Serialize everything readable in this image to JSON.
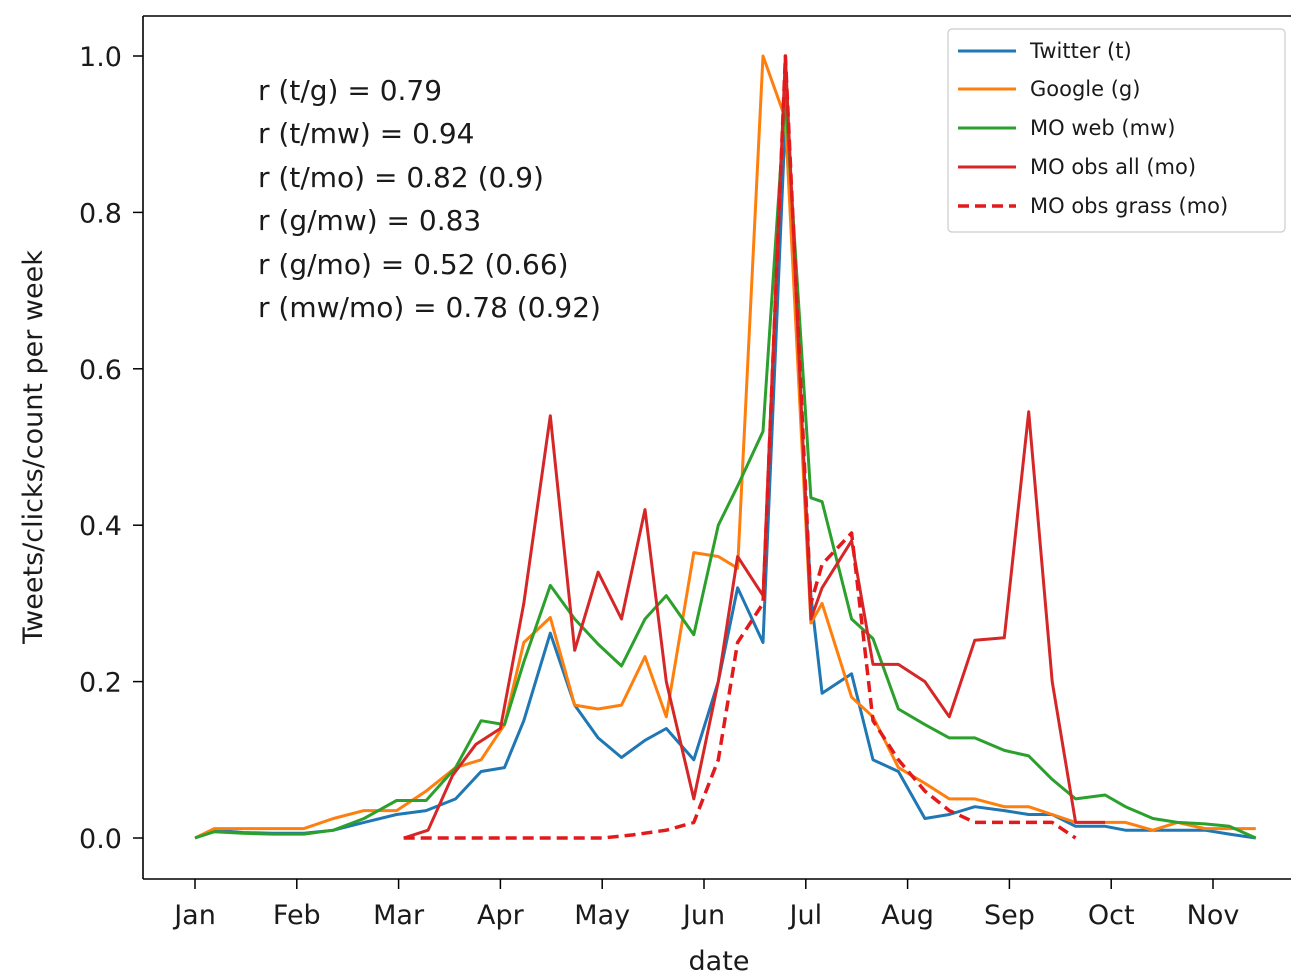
{
  "chart_data": {
    "type": "line",
    "xlabel": "date",
    "ylabel": "Tweets/clicks/count per week",
    "x_tick_labels": [
      "Jan",
      "Feb",
      "Mar",
      "Apr",
      "May",
      "Jun",
      "Jul",
      "Aug",
      "Sep",
      "Oct",
      "Nov"
    ],
    "y_ticks": [
      0.0,
      0.2,
      0.4,
      0.6,
      0.8,
      1.0
    ],
    "y_tick_labels": [
      "0.0",
      "0.2",
      "0.4",
      "0.6",
      "0.8",
      "1.0"
    ],
    "ylim": [
      -0.05,
      1.05
    ],
    "xlim": [
      -0.25,
      10.8
    ],
    "grid": false,
    "legend_position": "top-right",
    "annotations": [
      "r (t/g) = 0.79",
      "r (t/mw) = 0.94",
      "r (t/mo) = 0.82 (0.9)",
      "r (g/mw) = 0.83",
      "r (g/mo) = 0.52 (0.66)",
      "r (mw/mo) = 0.78 (0.92)"
    ],
    "x_unit": "month index (0 = Jan, 10 = Nov)",
    "series": [
      {
        "name": "Twitter (t)",
        "color": "#1f77b4",
        "style": "solid",
        "x": [
          0.0,
          0.19,
          0.47,
          0.76,
          1.07,
          1.36,
          1.66,
          1.98,
          2.27,
          2.56,
          2.81,
          3.04,
          3.23,
          3.49,
          3.73,
          3.96,
          4.19,
          4.42,
          4.63,
          4.9,
          5.14,
          5.33,
          5.58,
          5.8,
          6.05,
          6.16,
          6.45,
          6.66,
          6.91,
          7.17,
          7.41,
          7.66,
          7.95,
          8.19,
          8.42,
          8.65,
          8.94,
          9.14,
          9.41,
          9.65,
          9.92,
          10.16,
          10.42
        ],
        "y": [
          0.0,
          0.01,
          0.007,
          0.006,
          0.006,
          0.01,
          0.02,
          0.03,
          0.035,
          0.05,
          0.085,
          0.09,
          0.15,
          0.262,
          0.17,
          0.128,
          0.103,
          0.125,
          0.14,
          0.1,
          0.2,
          0.32,
          0.25,
          0.92,
          0.31,
          0.185,
          0.21,
          0.1,
          0.085,
          0.025,
          0.03,
          0.04,
          0.035,
          0.03,
          0.03,
          0.015,
          0.015,
          0.01,
          0.01,
          0.01,
          0.01,
          0.005,
          0.0
        ]
      },
      {
        "name": "Google (g)",
        "color": "#ff7f0e",
        "style": "solid",
        "x": [
          0.0,
          0.19,
          0.47,
          0.76,
          1.07,
          1.36,
          1.66,
          1.98,
          2.27,
          2.56,
          2.81,
          3.04,
          3.23,
          3.49,
          3.73,
          3.96,
          4.19,
          4.42,
          4.63,
          4.9,
          5.14,
          5.33,
          5.58,
          5.8,
          6.05,
          6.16,
          6.45,
          6.66,
          6.91,
          7.17,
          7.41,
          7.66,
          7.95,
          8.19,
          8.42,
          8.65,
          8.94,
          9.14,
          9.41,
          9.65,
          9.92,
          10.16,
          10.42
        ],
        "y": [
          0.0,
          0.012,
          0.012,
          0.012,
          0.012,
          0.025,
          0.035,
          0.035,
          0.06,
          0.09,
          0.1,
          0.145,
          0.25,
          0.282,
          0.17,
          0.165,
          0.17,
          0.232,
          0.155,
          0.365,
          0.36,
          0.345,
          1.0,
          0.92,
          0.275,
          0.3,
          0.18,
          0.155,
          0.09,
          0.07,
          0.05,
          0.05,
          0.04,
          0.04,
          0.03,
          0.02,
          0.02,
          0.02,
          0.01,
          0.02,
          0.012,
          0.012,
          0.012
        ]
      },
      {
        "name": "MO web (mw)",
        "color": "#2ca02c",
        "style": "solid",
        "x": [
          0.0,
          0.19,
          0.47,
          0.76,
          1.07,
          1.36,
          1.66,
          1.98,
          2.27,
          2.56,
          2.81,
          3.04,
          3.23,
          3.49,
          3.73,
          3.96,
          4.19,
          4.42,
          4.63,
          4.9,
          5.14,
          5.33,
          5.58,
          5.8,
          6.05,
          6.16,
          6.45,
          6.66,
          6.91,
          7.17,
          7.41,
          7.66,
          7.95,
          8.19,
          8.42,
          8.65,
          8.94,
          9.14,
          9.41,
          9.65,
          9.92,
          10.16,
          10.42
        ],
        "y": [
          0.0,
          0.008,
          0.006,
          0.005,
          0.005,
          0.01,
          0.025,
          0.048,
          0.048,
          0.09,
          0.15,
          0.145,
          0.225,
          0.323,
          0.28,
          0.248,
          0.22,
          0.28,
          0.31,
          0.26,
          0.4,
          0.45,
          0.52,
          0.95,
          0.435,
          0.43,
          0.28,
          0.255,
          0.165,
          0.145,
          0.128,
          0.128,
          0.112,
          0.105,
          0.075,
          0.05,
          0.055,
          0.04,
          0.025,
          0.02,
          0.018,
          0.015,
          0.0
        ]
      },
      {
        "name": "MO obs all (mo)",
        "color": "#d62728",
        "style": "solid",
        "x": [
          2.05,
          2.29,
          2.53,
          2.76,
          3.0,
          3.23,
          3.49,
          3.73,
          3.96,
          4.19,
          4.42,
          4.63,
          4.9,
          5.14,
          5.33,
          5.58,
          5.8,
          6.05,
          6.16,
          6.45,
          6.66,
          6.91,
          7.17,
          7.41,
          7.66,
          7.95,
          8.19,
          8.42,
          8.65,
          8.94
        ],
        "y": [
          0.0,
          0.01,
          0.08,
          0.12,
          0.14,
          0.3,
          0.54,
          0.24,
          0.34,
          0.28,
          0.42,
          0.2,
          0.05,
          0.2,
          0.36,
          0.31,
          1.0,
          0.28,
          0.32,
          0.38,
          0.222,
          0.222,
          0.2,
          0.155,
          0.253,
          0.256,
          0.545,
          0.2,
          0.02,
          0.02
        ]
      },
      {
        "name": "MO obs grass (mo)",
        "color": "#e31a1c",
        "style": "dashed",
        "x": [
          2.05,
          2.5,
          3.0,
          3.5,
          4.0,
          4.3,
          4.63,
          4.9,
          5.14,
          5.33,
          5.58,
          5.8,
          6.05,
          6.16,
          6.45,
          6.66,
          6.91,
          7.17,
          7.41,
          7.66,
          7.95,
          8.19,
          8.42,
          8.65
        ],
        "y": [
          0.0,
          0.0,
          0.0,
          0.0,
          0.0,
          0.004,
          0.01,
          0.02,
          0.1,
          0.25,
          0.3,
          1.0,
          0.3,
          0.35,
          0.39,
          0.15,
          0.1,
          0.06,
          0.035,
          0.02,
          0.02,
          0.02,
          0.02,
          0.0
        ]
      }
    ]
  }
}
